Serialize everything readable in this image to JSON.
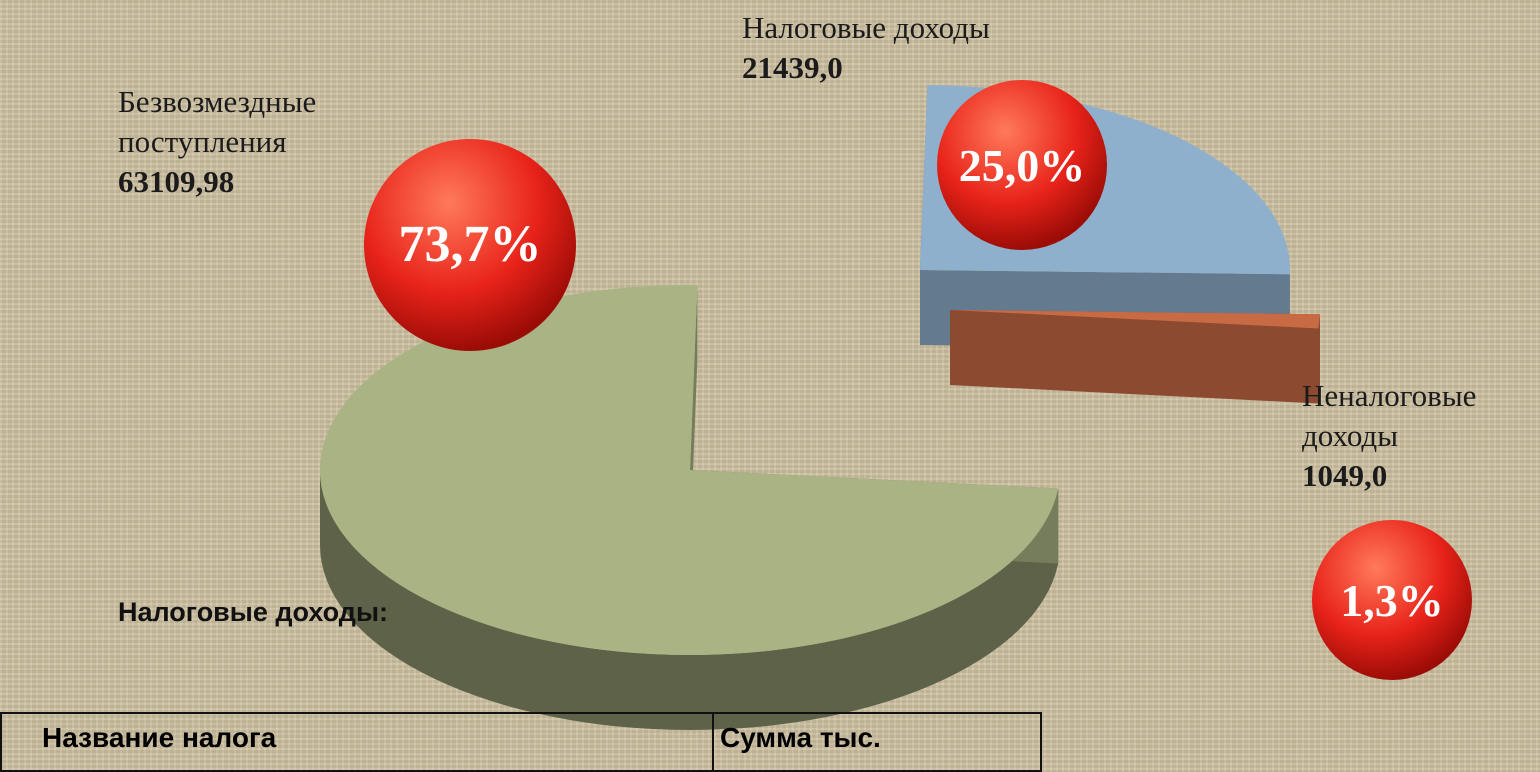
{
  "chart_data": {
    "type": "pie",
    "categories": [
      "Налоговые доходы",
      "Неналоговые доходы",
      "Безвозмездные поступления"
    ],
    "values": [
      21439.0,
      1049.0,
      63109.98
    ],
    "value_labels": [
      "21439,0",
      "1049,0",
      "63109,98"
    ],
    "share_labels": [
      "25,0%",
      "1,3%",
      "73,7%"
    ],
    "colors": [
      "#8fb0cc",
      "#c86a44",
      "#a9b383"
    ]
  },
  "section": {
    "title": "Налоговые доходы:"
  },
  "table": {
    "headers": [
      "Название налога",
      "Сумма тыс."
    ]
  }
}
